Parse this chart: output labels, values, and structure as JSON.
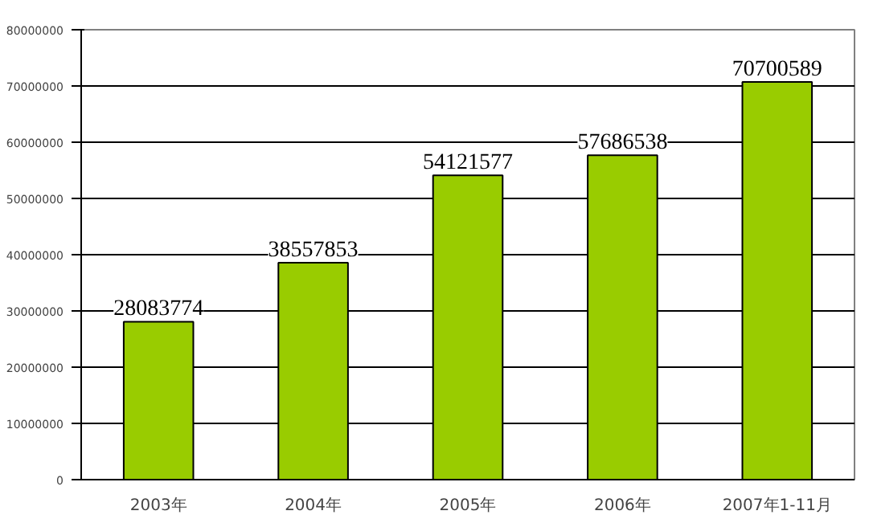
{
  "chart_data": {
    "type": "bar",
    "categories": [
      "2003年",
      "2004年",
      "2005年",
      "2006年",
      "2007年1-11月"
    ],
    "values": [
      28083774,
      38557853,
      54121577,
      57686538,
      70700589
    ],
    "color": "#99cc00",
    "data_labels": true,
    "ylim": [
      0,
      80000000
    ],
    "yticks": [
      0,
      10000000,
      20000000,
      30000000,
      40000000,
      50000000,
      60000000,
      70000000,
      80000000
    ],
    "grid": "y"
  }
}
